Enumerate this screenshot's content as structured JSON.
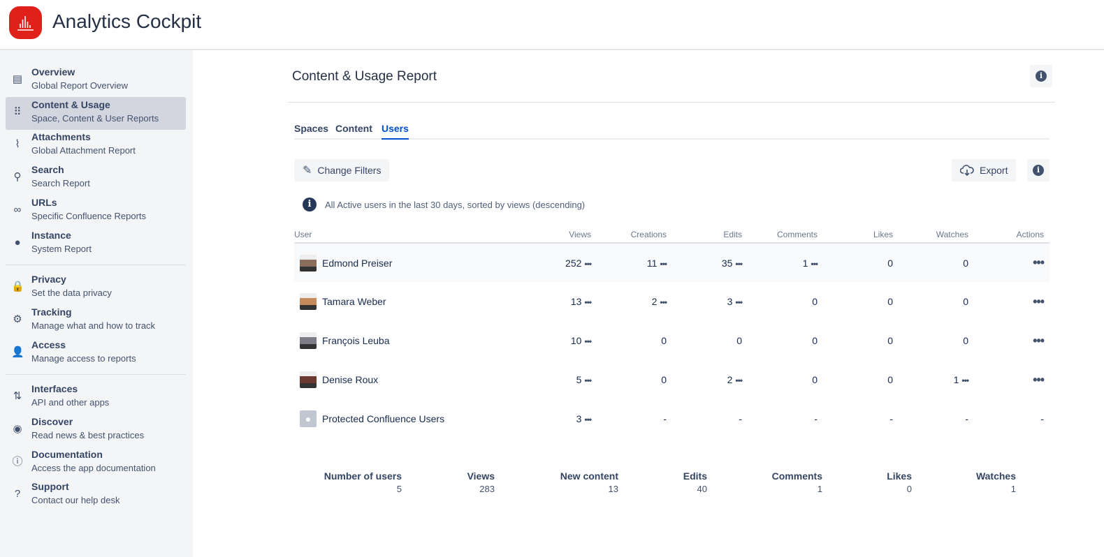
{
  "app": {
    "title": "Analytics Cockpit",
    "brand_color": "#e0201a"
  },
  "sidebar": {
    "items": [
      {
        "label": "Overview",
        "sub": "Global Report Overview",
        "icon": "document-icon"
      },
      {
        "label": "Content & Usage",
        "sub": "Space, Content & User Reports",
        "icon": "grid-icon",
        "active": true
      },
      {
        "label": "Attachments",
        "sub": "Global Attachment Report",
        "icon": "paperclip-icon"
      },
      {
        "label": "Search",
        "sub": "Search Report",
        "icon": "search-icon"
      },
      {
        "label": "URLs",
        "sub": "Specific Confluence Reports",
        "icon": "link-icon"
      },
      {
        "label": "Instance",
        "sub": "System Report",
        "icon": "chart-icon"
      },
      {
        "label": "Privacy",
        "sub": "Set the data privacy",
        "icon": "lock-icon"
      },
      {
        "label": "Tracking",
        "sub": "Manage what and how to track",
        "icon": "gear-icon"
      },
      {
        "label": "Access",
        "sub": "Manage access to reports",
        "icon": "user-check-icon"
      },
      {
        "label": "Interfaces",
        "sub": "API and other apps",
        "icon": "arrows-updown-icon"
      },
      {
        "label": "Discover",
        "sub": "Read news & best practices",
        "icon": "compass-icon"
      },
      {
        "label": "Documentation",
        "sub": "Access the app documentation",
        "icon": "info-icon"
      },
      {
        "label": "Support",
        "sub": "Contact our help desk",
        "icon": "question-icon"
      }
    ]
  },
  "main": {
    "title": "Content & Usage Report",
    "tabs": [
      {
        "label": "Spaces"
      },
      {
        "label": "Content"
      },
      {
        "label": "Users",
        "active": true
      }
    ],
    "change_filters": "Change Filters",
    "export": "Export",
    "note": "All Active users in the last 30 days, sorted by views (descending)",
    "columns": [
      "User",
      "Views",
      "Creations",
      "Edits",
      "Comments",
      "Likes",
      "Watches",
      "Actions"
    ],
    "rows": [
      {
        "name": "Edmond Preiser",
        "cells": [
          "252",
          "11",
          "35",
          "1",
          "0",
          "0"
        ],
        "more": [
          true,
          true,
          true,
          true,
          false,
          false
        ],
        "actions": true
      },
      {
        "name": "Tamara Weber",
        "cells": [
          "13",
          "2",
          "3",
          "0",
          "0",
          "0"
        ],
        "more": [
          true,
          true,
          true,
          false,
          false,
          false
        ],
        "actions": true
      },
      {
        "name": "François Leuba",
        "cells": [
          "10",
          "0",
          "0",
          "0",
          "0",
          "0"
        ],
        "more": [
          true,
          false,
          false,
          false,
          false,
          false
        ],
        "actions": true
      },
      {
        "name": "Denise Roux",
        "cells": [
          "5",
          "0",
          "2",
          "0",
          "0",
          "1"
        ],
        "more": [
          true,
          false,
          true,
          false,
          false,
          true
        ],
        "actions": true
      },
      {
        "name": "Protected Confluence Users",
        "cells": [
          "3",
          "-",
          "-",
          "-",
          "-",
          "-"
        ],
        "more": [
          true,
          false,
          false,
          false,
          false,
          false
        ],
        "actions": false,
        "actions_text": "-"
      }
    ],
    "summary": [
      {
        "label": "Number of users",
        "value": "5"
      },
      {
        "label": "Views",
        "value": "283"
      },
      {
        "label": "New content",
        "value": "13"
      },
      {
        "label": "Edits",
        "value": "40"
      },
      {
        "label": "Comments",
        "value": "1"
      },
      {
        "label": "Likes",
        "value": "0"
      },
      {
        "label": "Watches",
        "value": "1"
      }
    ]
  }
}
